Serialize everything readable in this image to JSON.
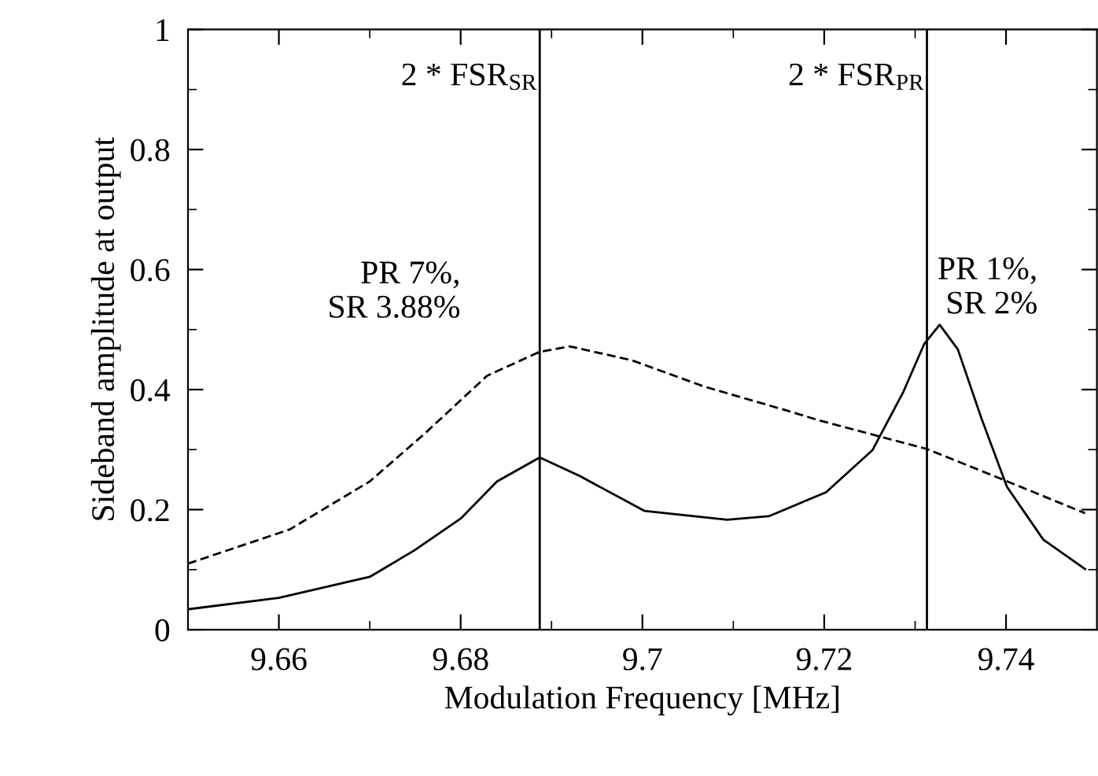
{
  "chart_data": {
    "type": "line",
    "xlabel": "Modulation Frequency [MHz]",
    "ylabel": "Sideband amplitude at output",
    "xlim": [
      9.65,
      9.75
    ],
    "ylim": [
      0,
      1
    ],
    "xticks": [
      9.66,
      {
        "value": 9.67,
        "label": null
      },
      9.68,
      {
        "value": 9.69,
        "label": null
      },
      9.7,
      {
        "value": 9.71,
        "label": null
      },
      9.72,
      {
        "value": 9.73,
        "label": null
      },
      9.74
    ],
    "yticks": [
      0,
      {
        "value": 0.1,
        "label": null
      },
      0.2,
      {
        "value": 0.3,
        "label": null
      },
      0.4,
      {
        "value": 0.5,
        "label": null
      },
      0.6,
      {
        "value": 0.7,
        "label": null
      },
      0.8,
      {
        "value": 0.9,
        "label": null
      },
      1
    ],
    "grid": false,
    "legend": false,
    "marker": "none",
    "ref_lines": [
      {
        "axis": "x",
        "value": 9.6887,
        "label": "2 * FSR$_{SR}$",
        "color": "#000000"
      },
      {
        "axis": "x",
        "value": 9.7313,
        "label": "2 * FSR$_{PR}$",
        "color": "#000000"
      }
    ],
    "series": [
      {
        "name": "PR 7%,\nSR 3.88%",
        "color": "#000000",
        "line_style": "dashed",
        "x": [
          9.65,
          9.6612,
          9.67,
          9.676,
          9.6829,
          9.6887,
          9.692,
          9.6988,
          9.7068,
          9.7159,
          9.7196,
          9.7313,
          9.7395,
          9.7487
        ],
        "values": [
          0.11,
          0.167,
          0.247,
          0.326,
          0.423,
          0.463,
          0.472,
          0.449,
          0.405,
          0.365,
          0.348,
          0.301,
          0.251,
          0.194
        ]
      },
      {
        "name": "PR 1%,\nSR 2%",
        "color": "#000000",
        "line_style": "solid",
        "x": [
          9.65,
          9.66,
          9.67,
          9.6749,
          9.68,
          9.684,
          9.6887,
          9.6931,
          9.7002,
          9.7093,
          9.7139,
          9.7202,
          9.7253,
          9.7287,
          9.731,
          9.7327,
          9.7347,
          9.7373,
          9.7401,
          9.7441,
          9.7487
        ],
        "values": [
          0.034,
          0.053,
          0.088,
          0.132,
          0.185,
          0.247,
          0.287,
          0.256,
          0.198,
          0.183,
          0.189,
          0.229,
          0.299,
          0.396,
          0.476,
          0.508,
          0.467,
          0.352,
          0.238,
          0.15,
          0.101
        ]
      }
    ]
  }
}
